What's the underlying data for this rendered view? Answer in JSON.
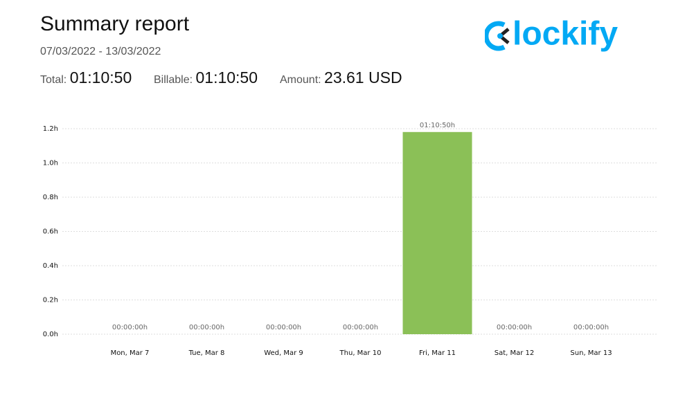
{
  "header": {
    "title": "Summary report",
    "date_range": "07/03/2022 - 13/03/2022",
    "total_label": "Total:",
    "total": "01:10:50",
    "billable_label": "Billable:",
    "billable": "01:10:50",
    "amount_label": "Amount:",
    "amount": "23.61 USD",
    "logo": "lockify"
  },
  "chart_data": {
    "type": "bar",
    "categories": [
      "Mon, Mar 7",
      "Tue, Mar 8",
      "Wed, Mar 9",
      "Thu, Mar 10",
      "Fri, Mar 11",
      "Sat, Mar 12",
      "Sun, Mar 13"
    ],
    "values": [
      0,
      0,
      0,
      0,
      1.1806,
      0,
      0
    ],
    "value_labels": [
      "00:00:00h",
      "00:00:00h",
      "00:00:00h",
      "00:00:00h",
      "01:10:50h",
      "00:00:00h",
      "00:00:00h"
    ],
    "color": "#8bc057",
    "ylim": [
      0,
      1.2
    ],
    "yticks": [
      {
        "value": 0,
        "label": "0.0h"
      },
      {
        "value": 0.2,
        "label": "0.2h"
      },
      {
        "value": 0.4,
        "label": "0.4h"
      },
      {
        "value": 0.6,
        "label": "0.6h"
      },
      {
        "value": 0.8,
        "label": "0.8h"
      },
      {
        "value": 1.0,
        "label": "1.0h"
      },
      {
        "value": 1.2,
        "label": "1.2h"
      }
    ],
    "grid": true
  }
}
